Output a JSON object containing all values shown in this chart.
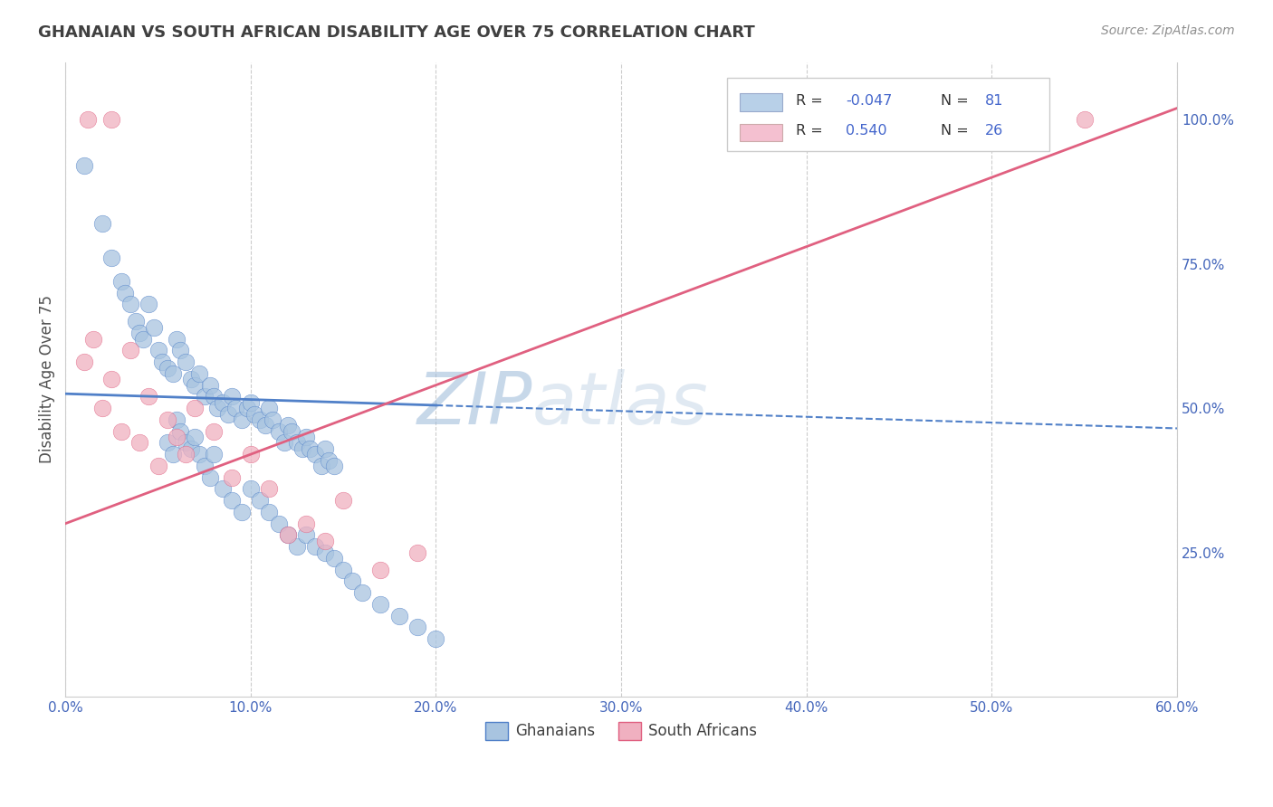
{
  "title": "GHANAIAN VS SOUTH AFRICAN DISABILITY AGE OVER 75 CORRELATION CHART",
  "source": "Source: ZipAtlas.com",
  "ylabel": "Disability Age Over 75",
  "xlabel_vals": [
    0.0,
    10.0,
    20.0,
    30.0,
    40.0,
    50.0,
    60.0
  ],
  "ylabel_vals_right": [
    25.0,
    50.0,
    75.0,
    100.0
  ],
  "xlim": [
    0.0,
    60.0
  ],
  "ylim": [
    0.0,
    110.0
  ],
  "blue_R": -0.047,
  "blue_N": 81,
  "pink_R": 0.54,
  "pink_N": 26,
  "blue_color": "#a8c4e0",
  "pink_color": "#f0b0c0",
  "blue_line_color": "#5080c8",
  "pink_line_color": "#e06080",
  "legend_box_blue": "#b8d0e8",
  "legend_box_pink": "#f4c0d0",
  "title_color": "#404040",
  "source_color": "#909090",
  "watermark_color": "#ccd8e8",
  "blue_scatter_x": [
    1.0,
    2.0,
    2.5,
    3.0,
    3.2,
    3.5,
    3.8,
    4.0,
    4.2,
    4.5,
    4.8,
    5.0,
    5.2,
    5.5,
    5.8,
    6.0,
    6.2,
    6.5,
    6.8,
    7.0,
    7.2,
    7.5,
    7.8,
    8.0,
    8.2,
    8.5,
    8.8,
    9.0,
    9.2,
    9.5,
    9.8,
    10.0,
    10.2,
    10.5,
    10.8,
    11.0,
    11.2,
    11.5,
    11.8,
    12.0,
    12.2,
    12.5,
    12.8,
    13.0,
    13.2,
    13.5,
    13.8,
    14.0,
    14.2,
    14.5,
    5.5,
    5.8,
    6.0,
    6.2,
    6.5,
    6.8,
    7.0,
    7.2,
    7.5,
    7.8,
    8.0,
    8.5,
    9.0,
    9.5,
    10.0,
    10.5,
    11.0,
    11.5,
    12.0,
    12.5,
    13.0,
    13.5,
    14.0,
    14.5,
    15.0,
    15.5,
    16.0,
    17.0,
    18.0,
    19.0,
    20.0
  ],
  "blue_scatter_y": [
    92.0,
    82.0,
    76.0,
    72.0,
    70.0,
    68.0,
    65.0,
    63.0,
    62.0,
    68.0,
    64.0,
    60.0,
    58.0,
    57.0,
    56.0,
    62.0,
    60.0,
    58.0,
    55.0,
    54.0,
    56.0,
    52.0,
    54.0,
    52.0,
    50.0,
    51.0,
    49.0,
    52.0,
    50.0,
    48.0,
    50.0,
    51.0,
    49.0,
    48.0,
    47.0,
    50.0,
    48.0,
    46.0,
    44.0,
    47.0,
    46.0,
    44.0,
    43.0,
    45.0,
    43.0,
    42.0,
    40.0,
    43.0,
    41.0,
    40.0,
    44.0,
    42.0,
    48.0,
    46.0,
    44.0,
    43.0,
    45.0,
    42.0,
    40.0,
    38.0,
    42.0,
    36.0,
    34.0,
    32.0,
    36.0,
    34.0,
    32.0,
    30.0,
    28.0,
    26.0,
    28.0,
    26.0,
    25.0,
    24.0,
    22.0,
    20.0,
    18.0,
    16.0,
    14.0,
    12.0,
    10.0
  ],
  "pink_scatter_x": [
    1.0,
    1.5,
    2.0,
    2.5,
    3.0,
    3.5,
    4.0,
    4.5,
    5.0,
    5.5,
    6.0,
    6.5,
    7.0,
    8.0,
    9.0,
    10.0,
    11.0,
    12.0,
    13.0,
    14.0,
    15.0,
    17.0,
    19.0,
    1.2,
    2.5,
    55.0
  ],
  "pink_scatter_y": [
    58.0,
    62.0,
    50.0,
    55.0,
    46.0,
    60.0,
    44.0,
    52.0,
    40.0,
    48.0,
    45.0,
    42.0,
    50.0,
    46.0,
    38.0,
    42.0,
    36.0,
    28.0,
    30.0,
    27.0,
    34.0,
    22.0,
    25.0,
    100.0,
    100.0,
    100.0
  ],
  "blue_line_x0": 0.0,
  "blue_line_y0": 52.5,
  "blue_line_x1": 60.0,
  "blue_line_y1": 46.5,
  "pink_line_x0": 0.0,
  "pink_line_y0": 30.0,
  "pink_line_x1": 60.0,
  "pink_line_y1": 102.0
}
